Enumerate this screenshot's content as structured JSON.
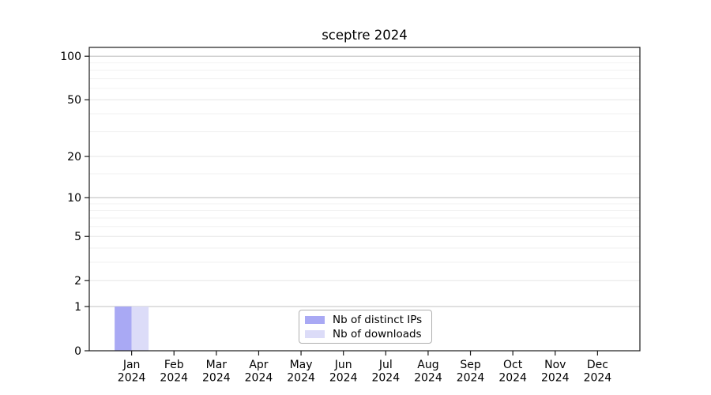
{
  "figure": {
    "title": "sceptre 2024"
  },
  "chart_data": {
    "type": "bar",
    "title": "sceptre 2024",
    "categories": [
      "Jan",
      "Feb",
      "Mar",
      "Apr",
      "May",
      "Jun",
      "Jul",
      "Aug",
      "Sep",
      "Oct",
      "Nov",
      "Dec"
    ],
    "category_year": "2024",
    "series": [
      {
        "name": "Nb of distinct IPs",
        "color": "#a9a9f4",
        "values": [
          1,
          0,
          0,
          0,
          0,
          0,
          0,
          0,
          0,
          0,
          0,
          0
        ]
      },
      {
        "name": "Nb of downloads",
        "color": "#dcdcf8",
        "values": [
          1,
          0,
          0,
          0,
          0,
          0,
          0,
          0,
          0,
          0,
          0,
          0
        ]
      }
    ],
    "xlabel": "",
    "ylabel": "",
    "y_scale": "log1p",
    "ylim": [
      0,
      115
    ],
    "y_ticks": [
      0,
      1,
      2,
      5,
      10,
      20,
      50,
      100
    ],
    "y_ticks_emphasized": [
      1,
      10,
      100
    ],
    "y_minor_gridlines": [
      3,
      4,
      6,
      7,
      8,
      9,
      15,
      30,
      40,
      60,
      70,
      80,
      90
    ],
    "grid": true,
    "legend_position": "lower center inside"
  },
  "colors": {
    "bar_distinct_ips": "#a9a9f4",
    "bar_downloads": "#dcdcf8",
    "axis": "#1a1a1a",
    "tick_label": "#000000",
    "grid_major": "#c2c2c2",
    "grid_mid": "#e6e6e6",
    "grid_minor": "#f2f2f2",
    "legend_border": "#b0b0b0"
  }
}
